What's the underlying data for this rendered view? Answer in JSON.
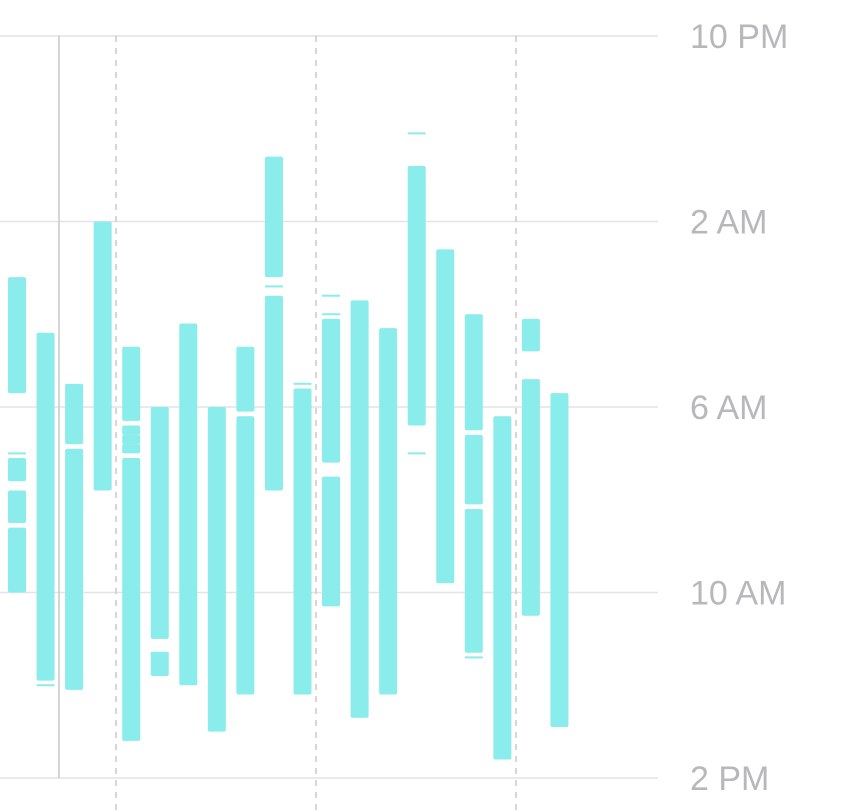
{
  "chart_data": {
    "type": "bar",
    "subtype": "floating-range",
    "y_axis": {
      "position": "right",
      "reversed": true,
      "range_hours": [
        22,
        38
      ],
      "ticks": [
        {
          "label": "10 PM",
          "hours": 22
        },
        {
          "label": "2 AM",
          "hours": 26
        },
        {
          "label": "6 AM",
          "hours": 30
        },
        {
          "label": "10 AM",
          "hours": 34
        },
        {
          "label": "2 PM",
          "hours": 38
        }
      ]
    },
    "grid": {
      "horizontal": true,
      "vertical_dashed": true
    },
    "series": [
      {
        "color": "#8aeceb",
        "columns": [
          {
            "segments": [
              [
                27.2,
                29.7
              ],
              [
                31.1,
                31.6
              ],
              [
                31.8,
                32.5
              ],
              [
                32.6,
                34.0
              ]
            ],
            "ticks": [
              31.0
            ]
          },
          {
            "segments": [
              [
                28.4,
                35.9
              ]
            ],
            "ticks": [
              36.0
            ]
          },
          {
            "segments": [
              [
                29.5,
                30.8
              ],
              [
                30.9,
                36.1
              ]
            ],
            "ticks": []
          },
          {
            "segments": [
              [
                26.0,
                31.8
              ]
            ],
            "ticks": []
          },
          {
            "segments": [
              [
                28.7,
                30.3
              ],
              [
                30.4,
                30.6
              ],
              [
                30.6,
                30.8
              ],
              [
                30.8,
                31.0
              ],
              [
                31.1,
                37.2
              ]
            ],
            "ticks": []
          },
          {
            "segments": [
              [
                30.0,
                35.0
              ],
              [
                35.3,
                35.8
              ]
            ],
            "ticks": [
              35.3
            ]
          },
          {
            "segments": [
              [
                28.2,
                36.0
              ]
            ],
            "ticks": []
          },
          {
            "segments": [
              [
                30.0,
                37.0
              ]
            ],
            "ticks": []
          },
          {
            "segments": [
              [
                28.7,
                30.1
              ],
              [
                30.2,
                36.2
              ]
            ],
            "ticks": []
          },
          {
            "segments": [
              [
                24.6,
                27.2
              ],
              [
                27.6,
                31.8
              ]
            ],
            "ticks": [
              27.4
            ]
          },
          {
            "segments": [
              [
                29.6,
                36.2
              ]
            ],
            "ticks": [
              29.5
            ]
          },
          {
            "segments": [
              [
                28.1,
                31.2
              ],
              [
                31.5,
                34.3
              ]
            ],
            "ticks": [
              27.6,
              28.0
            ]
          },
          {
            "segments": [
              [
                27.7,
                36.7
              ]
            ],
            "ticks": []
          },
          {
            "segments": [
              [
                28.3,
                36.2
              ]
            ],
            "ticks": []
          },
          {
            "segments": [
              [
                24.8,
                30.4
              ]
            ],
            "ticks": [
              24.1,
              31.0
            ]
          },
          {
            "segments": [
              [
                26.6,
                33.8
              ]
            ],
            "ticks": []
          },
          {
            "segments": [
              [
                28.0,
                30.5
              ],
              [
                30.6,
                32.1
              ],
              [
                32.2,
                35.3
              ]
            ],
            "ticks": [
              35.4
            ]
          },
          {
            "segments": [
              [
                30.2,
                37.6
              ]
            ],
            "ticks": []
          },
          {
            "segments": [
              [
                28.1,
                28.8
              ],
              [
                29.4,
                34.5
              ]
            ],
            "ticks": []
          },
          {
            "segments": [
              [
                29.7,
                36.9
              ]
            ],
            "ticks": []
          }
        ]
      }
    ]
  }
}
